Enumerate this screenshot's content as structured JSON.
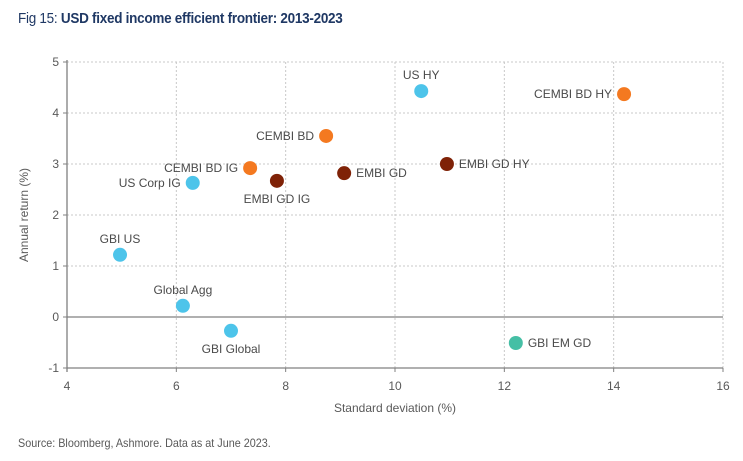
{
  "figure": {
    "prefix": "Fig 15: ",
    "title": "USD fixed income efficient frontier: 2013-2023",
    "source": "Source: Bloomberg, Ashmore. Data as at June 2023."
  },
  "chart_data": {
    "type": "scatter",
    "title": "USD fixed income efficient frontier: 2013-2023",
    "xlabel": "Standard deviation (%)",
    "ylabel": "Annual return (%)",
    "xlim": [
      4,
      16
    ],
    "ylim": [
      -1,
      5
    ],
    "xticks": [
      "4",
      "6",
      "8",
      "10",
      "12",
      "14",
      "16"
    ],
    "yticks": [
      "5",
      "4",
      "3",
      "2",
      "1",
      "0",
      "-1"
    ],
    "grid": true,
    "colors": {
      "developed": "#4dc4ea",
      "cembi": "#f47920",
      "embi": "#7f2207",
      "local": "#45bfa5"
    },
    "points": [
      {
        "name": "US HY",
        "x": 10.48,
        "y": 4.43,
        "group": "developed",
        "label_pos": "top"
      },
      {
        "name": "CEMBI BD HY",
        "x": 14.19,
        "y": 4.37,
        "group": "cembi",
        "label_pos": "left"
      },
      {
        "name": "CEMBI BD",
        "x": 8.74,
        "y": 3.55,
        "group": "cembi",
        "label_pos": "left"
      },
      {
        "name": "EMBI GD HY",
        "x": 10.95,
        "y": 3.0,
        "group": "embi",
        "label_pos": "right"
      },
      {
        "name": "CEMBI BD IG",
        "x": 7.35,
        "y": 2.92,
        "group": "cembi",
        "label_pos": "left"
      },
      {
        "name": "EMBI GD",
        "x": 9.07,
        "y": 2.82,
        "group": "embi",
        "label_pos": "right"
      },
      {
        "name": "EMBI GD IG",
        "x": 7.84,
        "y": 2.67,
        "group": "embi",
        "label_pos": "bottom"
      },
      {
        "name": "US Corp IG",
        "x": 6.3,
        "y": 2.63,
        "group": "developed",
        "label_pos": "left"
      },
      {
        "name": "GBI US",
        "x": 4.97,
        "y": 1.22,
        "group": "developed",
        "label_pos": "top"
      },
      {
        "name": "Global Agg",
        "x": 6.12,
        "y": 0.22,
        "group": "developed",
        "label_pos": "top"
      },
      {
        "name": "GBI Global",
        "x": 7.0,
        "y": -0.27,
        "group": "developed",
        "label_pos": "bottom"
      },
      {
        "name": "GBI EM GD",
        "x": 12.21,
        "y": -0.51,
        "group": "local",
        "label_pos": "right"
      }
    ]
  }
}
